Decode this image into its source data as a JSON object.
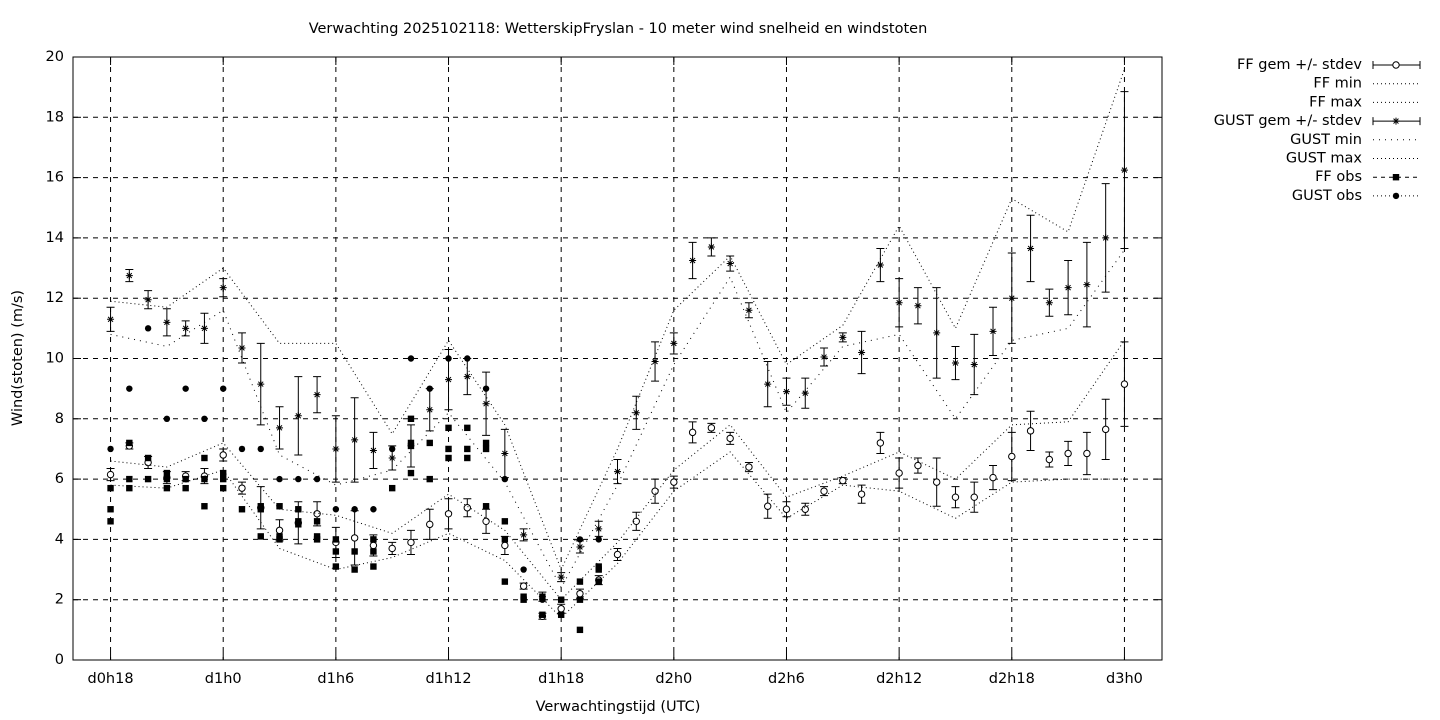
{
  "chart_data": {
    "type": "errorbar-line",
    "title": "Verwachting 2025102118: WetterskipFryslan - 10 meter wind snelheid en windstoten",
    "x_label": "Verwachtingstijd (UTC)",
    "y_label": "Wind(stoten) (m/s)",
    "xlim": [
      16,
      74
    ],
    "ylim": [
      0,
      20
    ],
    "xticks": [
      {
        "value": 18,
        "label": "d0h18"
      },
      {
        "value": 24,
        "label": "d1h0"
      },
      {
        "value": 30,
        "label": "d1h6"
      },
      {
        "value": 36,
        "label": "d1h12"
      },
      {
        "value": 42,
        "label": "d1h18"
      },
      {
        "value": 48,
        "label": "d2h0"
      },
      {
        "value": 54,
        "label": "d2h6"
      },
      {
        "value": 60,
        "label": "d2h12"
      },
      {
        "value": 66,
        "label": "d2h18"
      },
      {
        "value": 72,
        "label": "d3h0"
      }
    ],
    "yticks": [
      0,
      2,
      4,
      6,
      8,
      10,
      12,
      14,
      16,
      18,
      20
    ],
    "grid": true,
    "legend": "outside-top-right",
    "series": [
      {
        "name": "FF gem +/- stdev",
        "color": "#000000",
        "style": "errorbars",
        "marker": "circle-open",
        "x": [
          18,
          19,
          20,
          21,
          22,
          23,
          24,
          25,
          26,
          27,
          28,
          29,
          30,
          31,
          32,
          33,
          34,
          35,
          36,
          37,
          38,
          39,
          40,
          41,
          42,
          43,
          44,
          45,
          46,
          47,
          48,
          49,
          50,
          51,
          52,
          53,
          54,
          55,
          56,
          57,
          58,
          59,
          60,
          61,
          62,
          63,
          64,
          65,
          66,
          67,
          68,
          69,
          70,
          71,
          72
        ],
        "values": [
          6.15,
          7.1,
          6.55,
          6.05,
          6.1,
          6.1,
          6.8,
          5.7,
          5.05,
          4.3,
          4.55,
          4.85,
          3.9,
          4.05,
          3.8,
          3.7,
          3.9,
          4.5,
          4.85,
          5.05,
          4.6,
          3.8,
          2.45,
          1.45,
          1.7,
          2.2,
          2.65,
          3.5,
          4.6,
          5.6,
          5.9,
          7.55,
          7.7,
          7.35,
          6.4,
          5.1,
          5.0,
          5.0,
          5.6,
          5.95,
          5.5,
          7.2,
          6.2,
          6.45,
          5.9,
          5.4,
          5.4,
          6.05,
          6.75,
          7.6,
          6.65,
          6.85,
          6.85,
          7.65,
          9.15
        ],
        "errors": [
          0.2,
          0.1,
          0.2,
          0.2,
          0.15,
          0.25,
          0.2,
          0.2,
          0.7,
          0.35,
          0.7,
          0.4,
          0.5,
          0.9,
          0.35,
          0.2,
          0.4,
          0.5,
          0.5,
          0.3,
          0.4,
          0.3,
          0.1,
          0.1,
          0.15,
          0.15,
          0.15,
          0.2,
          0.3,
          0.4,
          0.2,
          0.35,
          0.15,
          0.2,
          0.15,
          0.4,
          0.25,
          0.2,
          0.15,
          0.1,
          0.3,
          0.35,
          0.5,
          0.25,
          0.8,
          0.35,
          0.5,
          0.4,
          0.8,
          0.65,
          0.25,
          0.4,
          0.7,
          1.0,
          1.4
        ]
      },
      {
        "name": "FF min",
        "color": "#000000",
        "style": "line",
        "dash": "1 3",
        "x": [
          18,
          21,
          24,
          27,
          30,
          33,
          36,
          39,
          42,
          45,
          48,
          51,
          54,
          57,
          60,
          63,
          66,
          69,
          72
        ],
        "values": [
          5.8,
          5.7,
          6.3,
          3.7,
          3.0,
          3.4,
          4.2,
          3.3,
          1.4,
          3.2,
          5.6,
          6.9,
          4.7,
          5.8,
          5.6,
          4.7,
          5.9,
          6.0,
          6.0
        ]
      },
      {
        "name": "FF max",
        "color": "#000000",
        "style": "line",
        "dash": "1 3",
        "x": [
          18,
          21,
          24,
          27,
          30,
          33,
          36,
          39,
          42,
          45,
          48,
          51,
          54,
          57,
          60,
          63,
          66,
          69,
          72
        ],
        "values": [
          6.6,
          6.4,
          7.2,
          5.0,
          4.8,
          4.2,
          5.5,
          4.3,
          2.0,
          3.9,
          6.3,
          7.8,
          5.4,
          6.1,
          6.9,
          6.0,
          7.8,
          7.9,
          10.6
        ]
      },
      {
        "name": "GUST gem +/- stdev",
        "color": "#000000",
        "style": "errorbars",
        "marker": "star",
        "x": [
          18,
          19,
          20,
          21,
          22,
          23,
          24,
          25,
          26,
          27,
          28,
          29,
          30,
          31,
          32,
          33,
          34,
          35,
          36,
          37,
          38,
          39,
          40,
          41,
          42,
          43,
          44,
          45,
          46,
          47,
          48,
          49,
          50,
          51,
          52,
          53,
          54,
          55,
          56,
          57,
          58,
          59,
          60,
          61,
          62,
          63,
          64,
          65,
          66,
          67,
          68,
          69,
          70,
          71,
          72
        ],
        "values": [
          11.3,
          12.75,
          11.95,
          11.2,
          11.0,
          11.0,
          12.35,
          10.35,
          9.15,
          7.7,
          8.1,
          8.8,
          7.0,
          7.3,
          6.95,
          6.7,
          7.1,
          8.3,
          9.3,
          9.4,
          8.5,
          6.85,
          4.15,
          2.1,
          2.75,
          3.75,
          4.35,
          6.25,
          8.2,
          9.9,
          10.5,
          13.25,
          13.7,
          13.15,
          11.6,
          9.15,
          8.9,
          8.85,
          10.05,
          10.7,
          10.2,
          13.1,
          11.85,
          11.75,
          10.85,
          9.85,
          9.8,
          10.9,
          12.0,
          13.65,
          11.85,
          12.35,
          12.45,
          14.0,
          16.25
        ],
        "errors": [
          0.4,
          0.2,
          0.3,
          0.45,
          0.25,
          0.5,
          0.3,
          0.5,
          1.35,
          0.7,
          1.3,
          0.6,
          1.1,
          1.4,
          0.6,
          0.4,
          0.7,
          0.7,
          1.0,
          0.6,
          1.05,
          0.8,
          0.2,
          0.15,
          0.15,
          0.2,
          0.25,
          0.4,
          0.55,
          0.65,
          0.35,
          0.6,
          0.3,
          0.25,
          0.25,
          0.75,
          0.45,
          0.5,
          0.3,
          0.15,
          0.7,
          0.55,
          0.8,
          0.6,
          1.5,
          0.55,
          1.0,
          0.8,
          1.5,
          1.1,
          0.45,
          0.9,
          1.4,
          1.8,
          2.6
        ]
      },
      {
        "name": "GUST min",
        "color": "#000000",
        "style": "line",
        "dash": "1 5",
        "x": [
          18,
          21,
          24,
          27,
          30,
          33,
          36,
          39,
          42,
          45,
          48,
          51,
          54,
          57,
          60,
          63,
          66,
          69,
          72
        ],
        "values": [
          10.8,
          10.4,
          11.6,
          6.8,
          5.8,
          6.3,
          8.2,
          5.9,
          2.4,
          5.8,
          9.8,
          12.7,
          8.2,
          10.4,
          10.8,
          8.0,
          10.6,
          11.0,
          13.6
        ]
      },
      {
        "name": "GUST max",
        "color": "#000000",
        "style": "line",
        "dash": "1 3",
        "x": [
          18,
          21,
          24,
          27,
          30,
          33,
          36,
          39,
          42,
          45,
          48,
          51,
          54,
          57,
          60,
          63,
          66,
          69,
          72
        ],
        "values": [
          11.9,
          11.7,
          13.0,
          10.5,
          10.5,
          7.5,
          10.6,
          7.8,
          3.0,
          7.0,
          11.6,
          13.4,
          9.8,
          11.1,
          14.4,
          11.0,
          15.3,
          14.2,
          19.6
        ]
      },
      {
        "name": "FF obs",
        "color": "#000000",
        "style": "points",
        "marker": "square",
        "dash": "4 4",
        "x": [
          18,
          18,
          18,
          19,
          19,
          19,
          20,
          20,
          21,
          21,
          21,
          22,
          22,
          23,
          23,
          23,
          24,
          24,
          24,
          25,
          26,
          26,
          26,
          27,
          27,
          27,
          28,
          28,
          28,
          29,
          29,
          29,
          30,
          30,
          30,
          31,
          31,
          32,
          32,
          32,
          33,
          34,
          34,
          34,
          34,
          35,
          35,
          36,
          36,
          36,
          37,
          37,
          37,
          38,
          38,
          38,
          39,
          39,
          39,
          40,
          40,
          41,
          41,
          42,
          42,
          43,
          43,
          43,
          44,
          44,
          44
        ],
        "values": [
          4.6,
          5.0,
          5.7,
          5.7,
          6.0,
          7.2,
          6.0,
          6.7,
          5.7,
          6.0,
          6.2,
          5.7,
          6.0,
          5.1,
          6.0,
          6.7,
          5.7,
          6.0,
          6.2,
          5.0,
          4.1,
          5.0,
          5.1,
          4.0,
          4.1,
          5.1,
          4.5,
          4.6,
          5.0,
          4.0,
          4.1,
          4.6,
          3.1,
          3.6,
          4.0,
          3.0,
          3.6,
          3.1,
          3.6,
          4.0,
          5.7,
          6.2,
          7.1,
          7.2,
          8.0,
          6.0,
          7.2,
          6.7,
          7.0,
          7.7,
          6.7,
          7.0,
          7.7,
          5.1,
          7.0,
          7.2,
          2.6,
          4.0,
          4.6,
          2.0,
          2.1,
          1.5,
          2.1,
          1.5,
          2.0,
          1.0,
          2.0,
          2.6,
          2.6,
          3.0,
          3.1
        ]
      },
      {
        "name": "GUST obs",
        "color": "#000000",
        "style": "points",
        "marker": "circle",
        "dash": "1 3",
        "x": [
          18,
          19,
          20,
          21,
          22,
          23,
          24,
          25,
          26,
          27,
          28,
          29,
          30,
          31,
          32,
          33,
          34,
          35,
          36,
          37,
          38,
          39,
          40,
          41,
          42,
          43,
          44
        ],
        "values": [
          7,
          9,
          11,
          8,
          9,
          8,
          9,
          7,
          7,
          6,
          6,
          6,
          5,
          5,
          5,
          7,
          10,
          9,
          10,
          10,
          9,
          6,
          3,
          2,
          2,
          4,
          4
        ]
      }
    ]
  }
}
